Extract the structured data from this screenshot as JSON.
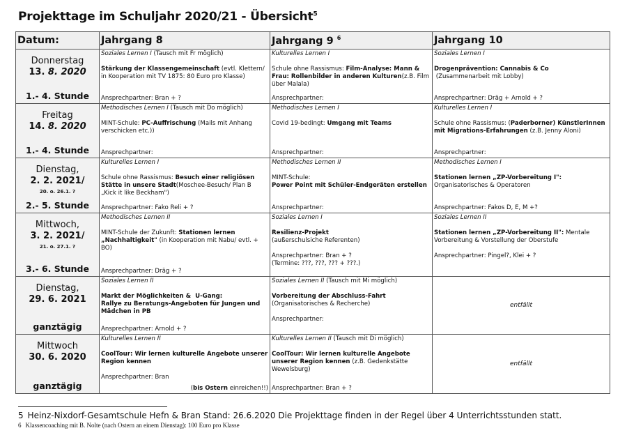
{
  "title": "Projekttage im Schuljahr 2020/21  - Übersicht",
  "title_sup": "5",
  "headers": [
    {
      "label": "Datum:",
      "sup": ""
    },
    {
      "label": "Jahrgang 8",
      "sup": ""
    },
    {
      "label": "Jahrgang 9",
      "sup": "6"
    },
    {
      "label": "Jahrgang 10",
      "sup": ""
    }
  ],
  "rows": [
    {
      "day": "Donnerstag",
      "date_b": "13.",
      "date_i": " 8. 2020",
      "note": "",
      "time": "1.- 4. Stunde",
      "cells": [
        {
          "cat": "Soziales Lernen I",
          "cat_note": " (Tausch mit Fr möglich)",
          "body": [
            {
              "t": "Stärkung der Klassengemeinschaft",
              "b": true
            },
            {
              "t": " (evtl. Klettern/ in Kooperation mit TV 1875: 80 Euro pro Klasse)",
              "b": false
            }
          ],
          "contact": "Ansprechpartner: Bran +  ?"
        },
        {
          "cat": "Kulturelles Lernen I",
          "cat_note": "",
          "body": [
            {
              "t": "Schule ohne Rassismus: ",
              "b": false
            },
            {
              "t": "Film-Analyse: Mann & Frau: Rollenbilder in anderen Kulturen",
              "b": true
            },
            {
              "t": "(z.B. Film über Malala)",
              "b": false
            }
          ],
          "contact": "Ansprechpartner:"
        },
        {
          "cat": "Soziales Lernen I",
          "cat_note": "",
          "body": [
            {
              "t": "Drogenprävention: Cannabis & Co",
              "b": true
            },
            {
              "t": "\n (Zusammenarbeit mit Lobby)",
              "b": false
            }
          ],
          "contact": "Ansprechpartner: Dräg + Arnold + ?"
        }
      ]
    },
    {
      "day": "Freitag",
      "date_b": "14.",
      "date_i": " 8. 2020",
      "note": "",
      "time": "1.- 4. Stunde",
      "cells": [
        {
          "cat": "Methodisches Lernen I",
          "cat_note": " (Tausch mit Do möglich)",
          "body": [
            {
              "t": "MINT-Schule: ",
              "b": false
            },
            {
              "t": "PC-Auffrischung",
              "b": true
            },
            {
              "t": " (Mails mit Anhang verschicken etc.))",
              "b": false
            }
          ],
          "contact": "Ansprechpartner:"
        },
        {
          "cat": "Methodisches Lernen I",
          "cat_note": "",
          "body": [
            {
              "t": "Covid 19-bedingt: ",
              "b": false
            },
            {
              "t": "Umgang mit Teams",
              "b": true
            }
          ],
          "contact": "Ansprechpartner:"
        },
        {
          "cat": "Kulturelles Lernen I",
          "cat_note": "",
          "body": [
            {
              "t": "Schule ohne Rassismus: (",
              "b": false
            },
            {
              "t": "Paderborner) KünstlerInnen mit Migrations-Erfahrungen",
              "b": true
            },
            {
              "t": " (z.B. Jenny Aloni)",
              "b": false
            }
          ],
          "contact": "Ansprechpartner:"
        }
      ]
    },
    {
      "day": "Dienstag,",
      "date_b": "2. 2. 2021/",
      "date_i": "",
      "note": "20. o. 26.1. ?",
      "time": "2.- 5. Stunde",
      "cells": [
        {
          "cat": "Kulturelles Lernen I",
          "cat_note": "",
          "body": [
            {
              "t": "Schule ohne Rassismus: ",
              "b": false
            },
            {
              "t": "Besuch einer religiösen Stätte in unsere Stadt",
              "b": true
            },
            {
              "t": "(Moschee-Besuch/ Plan B „Kick it like Beckham\")",
              "b": false
            }
          ],
          "contact": "Ansprechpartner: Fako Reli + ?"
        },
        {
          "cat": "Methodisches Lernen II",
          "cat_note": "",
          "body": [
            {
              "t": "MINT-Schule:\n",
              "b": false
            },
            {
              "t": "Power Point mit Schüler-Endgeräten erstellen",
              "b": true
            }
          ],
          "contact": "Ansprechpartner:"
        },
        {
          "cat": "Methodisches Lernen I",
          "cat_note": "",
          "body": [
            {
              "t": "Stationen lernen „ZP-Vorbereitung I\":",
              "b": true
            },
            {
              "t": "\nOrganisatorisches & Operatoren",
              "b": false
            }
          ],
          "contact": "Ansprechpartner: Fakos D, E,  M +?"
        }
      ]
    },
    {
      "day": "Mittwoch,",
      "date_b": "3. 2. 2021/",
      "date_i": "",
      "note": "21. o. 27.1. ?",
      "time": "3.- 6. Stunde",
      "cells": [
        {
          "cat": "Methodisches Lernen II",
          "cat_note": "",
          "body": [
            {
              "t": "MINT-Schule der Zukunft: ",
              "b": false
            },
            {
              "t": "Stationen lernen „Nachhaltigkeit\"",
              "b": true
            },
            {
              "t": " (in Kooperation mit Nabu/ evtl. + BO)",
              "b": false
            }
          ],
          "contact": "Ansprechpartner: Dräg + ?"
        },
        {
          "cat": "Soziales Lernen I",
          "cat_note": "",
          "body": [
            {
              "t": "Resilienz-Projekt",
              "b": true
            },
            {
              "t": "\n(außerschulsiche Referenten)\n\nAnsprechpartner: Bran + ?\n(Termine: ???, ???, ??? + ???.)",
              "b": false
            }
          ],
          "contact": ""
        },
        {
          "cat": "Soziales Lernen II",
          "cat_note": "",
          "body": [
            {
              "t": "Stationen lernen „ZP-Vorbereitung II\":",
              "b": true
            },
            {
              "t": " Mentale Vorbereitung & Vorstellung der Oberstufe\n\nAnsprechpartner: Pingel?, Klei + ?",
              "b": false
            }
          ],
          "contact": ""
        }
      ]
    },
    {
      "day": "Dienstag,",
      "date_b": "29. 6. 2021",
      "date_i": "",
      "note": "",
      "time": "ganztägig",
      "cells": [
        {
          "cat": "Soziales Lernen II",
          "cat_note": "",
          "body": [
            {
              "t": "Markt der Möglichkeiten &  U-Gang:\nRallye zu Beratungs-Angeboten für Jungen und Mädchen in PB",
              "b": true
            }
          ],
          "contact": "Ansprechpartner:  Arnold + ?"
        },
        {
          "cat": "Soziales Lernen II",
          "cat_note": " (Tausch mit Mi möglich)",
          "body": [
            {
              "t": "Vorbereitung der Abschluss-Fahrt",
              "b": true
            },
            {
              "t": "\n(Organisatorisches & Recherche)\n\nAnsprechpartner:",
              "b": false
            }
          ],
          "contact": ""
        },
        {
          "center": "entfällt"
        }
      ]
    },
    {
      "day": "Mittwoch",
      "date_b": "30. 6. 2020",
      "date_i": "",
      "note": "",
      "time": "ganztägig",
      "cells": [
        {
          "cat": "Kulturelles Lernen II",
          "cat_note": "",
          "body": [
            {
              "t": "CoolTour: Wir lernen kulturelle Angebote unserer Region kennen",
              "b": true
            },
            {
              "t": "\n\nAnsprechpartner: Bran",
              "b": false
            }
          ],
          "contact": "",
          "right_b": "bis Ostern",
          "right": " einreichen!!)"
        },
        {
          "cat": "Kulturelles Lernen II",
          "cat_note": "  (Tausch mit Di möglich)",
          "body": [
            {
              "t": "CoolTour: Wir lernen kulturelle Angebote unserer Region kennen",
              "b": true
            },
            {
              "t": " (z.B. Gedenkstätte Wewelsburg)",
              "b": false
            }
          ],
          "contact": "Ansprechpartner: Bran + ?"
        },
        {
          "center": "entfällt"
        }
      ]
    }
  ],
  "footnotes": [
    {
      "num": "5",
      "text": "Heinz-Nixdorf-Gesamtschule   Hefn & Bran Stand: 26.6.2020    Die Projekttage finden in der Regel über 4 Unterrichtsstunden statt."
    },
    {
      "num": "6",
      "text": "Klassencoaching mit B. Nolte (nach Ostern an einem Dienstag): 100 Euro pro Klasse"
    }
  ]
}
